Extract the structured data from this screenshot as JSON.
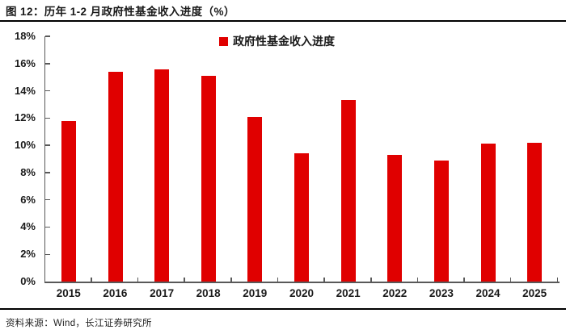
{
  "title": "图 12：历年 1-2 月政府性基金收入进度（%）",
  "legend": {
    "label": "政府性基金收入进度"
  },
  "source_note": "资料来源：Wind，长江证券研究所",
  "colors": {
    "bar": "#E00000",
    "axis_line": "#595959",
    "rule": "#000000"
  },
  "chart_data": {
    "type": "bar",
    "title": "历年 1-2 月政府性基金收入进度（%）",
    "categories": [
      "2015",
      "2016",
      "2017",
      "2018",
      "2019",
      "2020",
      "2021",
      "2022",
      "2023",
      "2024",
      "2025"
    ],
    "series": [
      {
        "name": "政府性基金收入进度",
        "values": [
          11.8,
          15.4,
          15.6,
          15.1,
          12.1,
          9.4,
          13.3,
          9.3,
          8.9,
          10.1,
          10.2
        ]
      }
    ],
    "xlabel": "",
    "ylabel": "",
    "ylim": [
      0,
      18
    ],
    "y_tick_step": 2,
    "y_tick_labels": [
      "0%",
      "2%",
      "4%",
      "6%",
      "8%",
      "10%",
      "12%",
      "14%",
      "16%",
      "18%"
    ],
    "grid": false,
    "legend_position": "top-center",
    "bar_color": "#E00000"
  }
}
